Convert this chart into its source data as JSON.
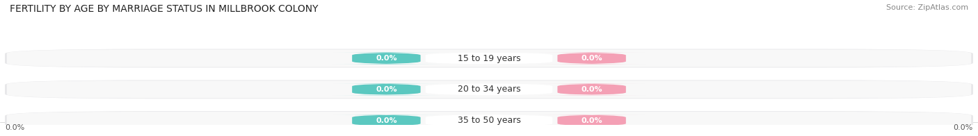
{
  "title": "FERTILITY BY AGE BY MARRIAGE STATUS IN MILLBROOK COLONY",
  "source": "Source: ZipAtlas.com",
  "categories": [
    "15 to 19 years",
    "20 to 34 years",
    "35 to 50 years"
  ],
  "married_values": [
    0.0,
    0.0,
    0.0
  ],
  "unmarried_values": [
    0.0,
    0.0,
    0.0
  ],
  "married_color": "#5BC8C0",
  "unmarried_color": "#F4A0B5",
  "bar_bg_color": "#E8E8EA",
  "bar_inner_color": "#F5F5F5",
  "background_color": "#FFFFFF",
  "title_fontsize": 10,
  "source_fontsize": 8,
  "label_fontsize": 8,
  "category_fontsize": 9,
  "legend_fontsize": 9
}
